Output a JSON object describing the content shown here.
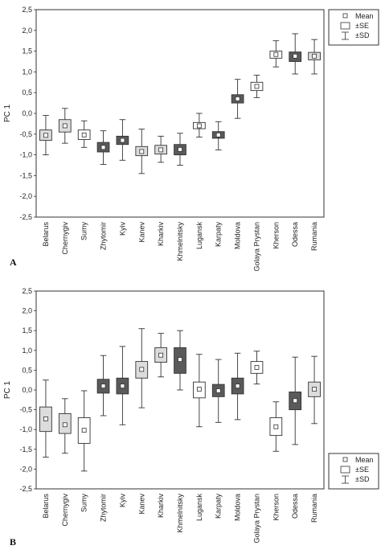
{
  "figure": {
    "panels": [
      "A",
      "B"
    ]
  },
  "legend": {
    "mean": "Mean",
    "se": "±SE",
    "sd": "±SD"
  },
  "colors": {
    "white": "#ffffff",
    "light": "#dcdcdc",
    "dark": "#5a5a5a",
    "stroke": "#333333"
  },
  "chart_data": [
    {
      "type": "boxplot",
      "panel_label": "A",
      "ylabel": "PC 1",
      "ylim": [
        -2.5,
        2.5
      ],
      "yticks": [
        "-2,5",
        "-2,0",
        "-1,5",
        "-1,0",
        "-0,5",
        "0,0",
        "0,5",
        "1,0",
        "1,5",
        "2,0",
        "2,5"
      ],
      "categories": [
        "Belarus",
        "Chernygiv",
        "Sumy",
        "Zhytomir",
        "Kyiv",
        "Kanev",
        "Kharkiv",
        "Khmelnitsky",
        "Lugansk",
        "Karpaty",
        "Moldova",
        "Golaya Prystan",
        "Kherson",
        "Odessa",
        "Rumania"
      ],
      "mean": [
        -0.53,
        -0.3,
        -0.52,
        -0.82,
        -0.65,
        -0.92,
        -0.88,
        -0.87,
        -0.3,
        -0.52,
        0.35,
        0.65,
        1.42,
        1.38,
        1.38
      ],
      "se_low": [
        -0.65,
        -0.45,
        -0.63,
        -0.93,
        -0.75,
        -1.02,
        -0.98,
        -1.0,
        -0.37,
        -0.6,
        0.25,
        0.55,
        1.33,
        1.25,
        1.29
      ],
      "se_high": [
        -0.4,
        -0.15,
        -0.4,
        -0.7,
        -0.55,
        -0.8,
        -0.77,
        -0.75,
        -0.22,
        -0.44,
        0.45,
        0.75,
        1.5,
        1.48,
        1.47
      ],
      "sd_low": [
        -1.0,
        -0.72,
        -0.82,
        -1.23,
        -1.13,
        -1.45,
        -1.18,
        -1.25,
        -0.57,
        -0.88,
        -0.12,
        0.38,
        1.12,
        0.95,
        0.95
      ],
      "sd_high": [
        -0.05,
        0.12,
        -0.18,
        -0.42,
        -0.15,
        -0.38,
        -0.55,
        -0.48,
        0.0,
        -0.2,
        0.82,
        0.92,
        1.75,
        1.92,
        1.78
      ],
      "fill": [
        "light",
        "light",
        "white",
        "dark",
        "dark",
        "light",
        "light",
        "dark",
        "white",
        "dark",
        "dark",
        "white",
        "white",
        "dark",
        "light"
      ],
      "legend_position": "top-right"
    },
    {
      "type": "boxplot",
      "panel_label": "B",
      "ylabel": "PC 1",
      "ylim": [
        -2.5,
        2.5
      ],
      "yticks": [
        "-2,5",
        "-2,0",
        "-1,5",
        "-1,0",
        "-0,5",
        "0,0",
        "0,5",
        "1,0",
        "1,5",
        "2,0",
        "2,5"
      ],
      "categories": [
        "Belarus",
        "Chernygiv",
        "Sumy",
        "Zhytomir",
        "Kyiv",
        "Kanev",
        "Kharkiv",
        "Khmelnitsky",
        "Lugansk",
        "Karpaty",
        "Moldova",
        "Golaya Prystan",
        "Kherson",
        "Odessa",
        "Rumania"
      ],
      "mean": [
        -0.73,
        -0.88,
        -1.02,
        0.1,
        0.1,
        0.52,
        0.88,
        0.77,
        0.02,
        -0.02,
        0.1,
        0.57,
        -0.93,
        -0.27,
        0.02
      ],
      "se_low": [
        -1.05,
        -1.1,
        -1.35,
        -0.08,
        -0.1,
        0.3,
        0.7,
        0.42,
        -0.2,
        -0.17,
        -0.1,
        0.42,
        -1.15,
        -0.5,
        -0.17
      ],
      "se_high": [
        -0.43,
        -0.6,
        -0.7,
        0.27,
        0.3,
        0.72,
        1.07,
        1.07,
        0.2,
        0.14,
        0.3,
        0.72,
        -0.7,
        -0.05,
        0.2
      ],
      "sd_low": [
        -1.7,
        -1.6,
        -2.05,
        -0.65,
        -0.88,
        -0.45,
        0.33,
        0.0,
        -0.93,
        -0.82,
        -0.75,
        0.15,
        -1.55,
        -1.38,
        -0.85
      ],
      "sd_high": [
        0.25,
        -0.22,
        -0.02,
        0.87,
        1.1,
        1.55,
        1.43,
        1.5,
        0.9,
        0.77,
        0.93,
        0.98,
        -0.3,
        0.83,
        0.85
      ],
      "fill": [
        "light",
        "light",
        "white",
        "dark",
        "dark",
        "light",
        "light",
        "dark",
        "white",
        "dark",
        "dark",
        "white",
        "white",
        "dark",
        "light"
      ],
      "legend_position": "bottom-right"
    }
  ]
}
